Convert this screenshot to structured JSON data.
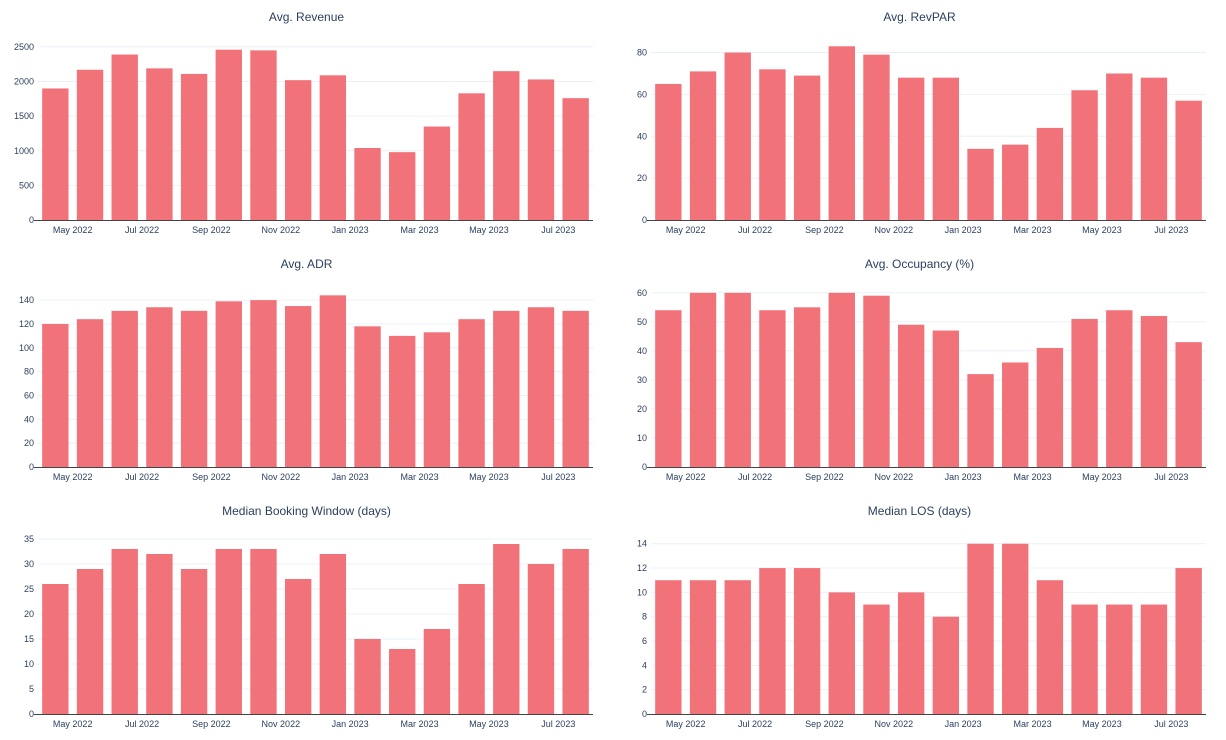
{
  "colors": {
    "bar": "#f2727a",
    "grid": "#ebf0f8",
    "axis": "#444444",
    "text": "#2a3f5f"
  },
  "chart_data": [
    {
      "type": "bar",
      "title": "Avg. Revenue",
      "categories": [
        "Apr 2022",
        "May 2022",
        "Jun 2022",
        "Jul 2022",
        "Aug 2022",
        "Sep 2022",
        "Oct 2022",
        "Nov 2022",
        "Dec 2022",
        "Jan 2023",
        "Feb 2023",
        "Mar 2023",
        "Apr 2023",
        "May 2023",
        "Jun 2023",
        "Jul 2023"
      ],
      "values": [
        1900,
        2170,
        2390,
        2190,
        2110,
        2460,
        2450,
        2020,
        2090,
        1040,
        980,
        1350,
        1830,
        2150,
        2030,
        1760
      ],
      "ylim": [
        0,
        2600
      ],
      "yticks": [
        0,
        500,
        1000,
        1500,
        2000,
        2500
      ],
      "xtick_labels": [
        "May 2022",
        "Jul 2022",
        "Sep 2022",
        "Nov 2022",
        "Jan 2023",
        "Mar 2023",
        "May 2023",
        "Jul 2023"
      ],
      "grid": true,
      "xlabel": "",
      "ylabel": ""
    },
    {
      "type": "bar",
      "title": "Avg. RevPAR",
      "categories": [
        "Apr 2022",
        "May 2022",
        "Jun 2022",
        "Jul 2022",
        "Aug 2022",
        "Sep 2022",
        "Oct 2022",
        "Nov 2022",
        "Dec 2022",
        "Jan 2023",
        "Feb 2023",
        "Mar 2023",
        "Apr 2023",
        "May 2023",
        "Jun 2023",
        "Jul 2023"
      ],
      "values": [
        65,
        71,
        80,
        72,
        69,
        83,
        79,
        68,
        68,
        34,
        36,
        44,
        62,
        70,
        68,
        57
      ],
      "ylim": [
        0,
        86
      ],
      "yticks": [
        0,
        20,
        40,
        60,
        80
      ],
      "xtick_labels": [
        "May 2022",
        "Jul 2022",
        "Sep 2022",
        "Nov 2022",
        "Jan 2023",
        "Mar 2023",
        "May 2023",
        "Jul 2023"
      ],
      "grid": true,
      "xlabel": "",
      "ylabel": ""
    },
    {
      "type": "bar",
      "title": "Avg. ADR",
      "categories": [
        "Apr 2022",
        "May 2022",
        "Jun 2022",
        "Jul 2022",
        "Aug 2022",
        "Sep 2022",
        "Oct 2022",
        "Nov 2022",
        "Dec 2022",
        "Jan 2023",
        "Feb 2023",
        "Mar 2023",
        "Apr 2023",
        "May 2023",
        "Jun 2023",
        "Jul 2023"
      ],
      "values": [
        120,
        124,
        131,
        134,
        131,
        139,
        140,
        135,
        144,
        118,
        110,
        113,
        124,
        131,
        134,
        131
      ],
      "ylim": [
        0,
        151
      ],
      "yticks": [
        0,
        20,
        40,
        60,
        80,
        100,
        120,
        140
      ],
      "xtick_labels": [
        "May 2022",
        "Jul 2022",
        "Sep 2022",
        "Nov 2022",
        "Jan 2023",
        "Mar 2023",
        "May 2023",
        "Jul 2023"
      ],
      "grid": true,
      "xlabel": "",
      "ylabel": ""
    },
    {
      "type": "bar",
      "title": "Avg. Occupancy (%)",
      "categories": [
        "Apr 2022",
        "May 2022",
        "Jun 2022",
        "Jul 2022",
        "Aug 2022",
        "Sep 2022",
        "Oct 2022",
        "Nov 2022",
        "Dec 2022",
        "Jan 2023",
        "Feb 2023",
        "Mar 2023",
        "Apr 2023",
        "May 2023",
        "Jun 2023",
        "Jul 2023"
      ],
      "values": [
        54,
        60,
        60,
        54,
        55,
        60,
        59,
        49,
        47,
        32,
        36,
        41,
        51,
        54,
        52,
        43
      ],
      "ylim": [
        0,
        62
      ],
      "yticks": [
        0,
        10,
        20,
        30,
        40,
        50,
        60
      ],
      "xtick_labels": [
        "May 2022",
        "Jul 2022",
        "Sep 2022",
        "Nov 2022",
        "Jan 2023",
        "Mar 2023",
        "May 2023",
        "Jul 2023"
      ],
      "grid": true,
      "xlabel": "",
      "ylabel": ""
    },
    {
      "type": "bar",
      "title": "Median Booking Window (days)",
      "categories": [
        "Apr 2022",
        "May 2022",
        "Jun 2022",
        "Jul 2022",
        "Aug 2022",
        "Sep 2022",
        "Oct 2022",
        "Nov 2022",
        "Dec 2022",
        "Jan 2023",
        "Feb 2023",
        "Mar 2023",
        "Apr 2023",
        "May 2023",
        "Jun 2023",
        "Jul 2023"
      ],
      "values": [
        26,
        29,
        33,
        32,
        29,
        33,
        33,
        27,
        32,
        15,
        13,
        17,
        26,
        34,
        30,
        33
      ],
      "ylim": [
        0,
        36
      ],
      "yticks": [
        0,
        5,
        10,
        15,
        20,
        25,
        30,
        35
      ],
      "xtick_labels": [
        "May 2022",
        "Jul 2022",
        "Sep 2022",
        "Nov 2022",
        "Jan 2023",
        "Mar 2023",
        "May 2023",
        "Jul 2023"
      ],
      "grid": true,
      "xlabel": "",
      "ylabel": ""
    },
    {
      "type": "bar",
      "title": "Median LOS (days)",
      "categories": [
        "Apr 2022",
        "May 2022",
        "Jun 2022",
        "Jul 2022",
        "Aug 2022",
        "Sep 2022",
        "Oct 2022",
        "Nov 2022",
        "Dec 2022",
        "Jan 2023",
        "Feb 2023",
        "Mar 2023",
        "Apr 2023",
        "May 2023",
        "Jun 2023",
        "Jul 2023"
      ],
      "values": [
        11,
        11,
        11,
        12,
        12,
        10,
        9,
        10,
        8,
        14,
        14,
        11,
        9,
        9,
        9,
        12
      ],
      "ylim": [
        0,
        14.8
      ],
      "yticks": [
        0,
        2,
        4,
        6,
        8,
        10,
        12,
        14
      ],
      "xtick_labels": [
        "May 2022",
        "Jul 2022",
        "Sep 2022",
        "Nov 2022",
        "Jan 2023",
        "Mar 2023",
        "May 2023",
        "Jul 2023"
      ],
      "grid": true,
      "xlabel": "",
      "ylabel": ""
    }
  ]
}
